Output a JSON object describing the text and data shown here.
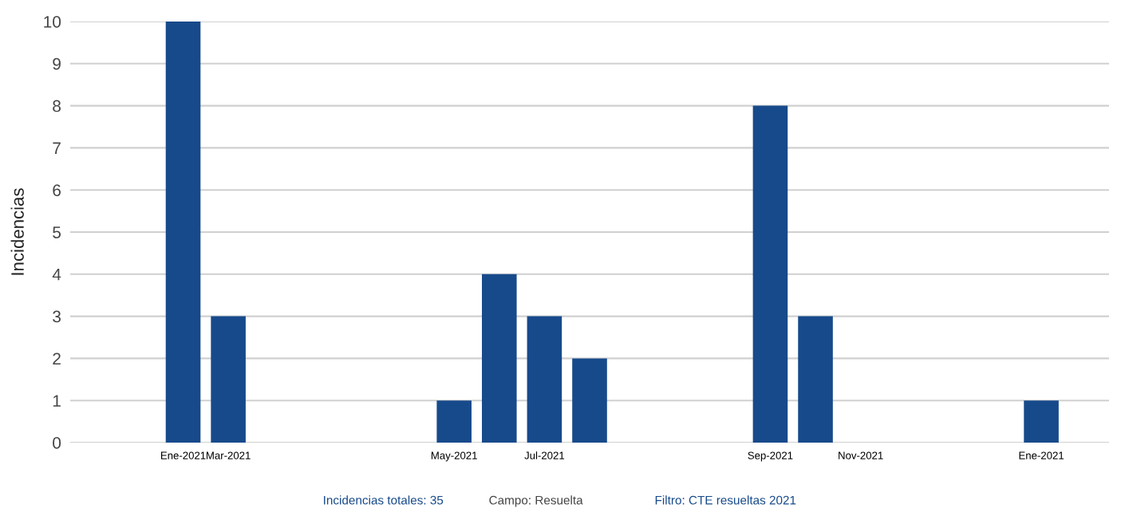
{
  "chart_data": {
    "type": "bar",
    "categories": [
      null,
      null,
      "Ene-2021",
      "Mar-2021",
      null,
      null,
      null,
      null,
      "May-2021",
      null,
      "Jul-2021",
      null,
      null,
      null,
      null,
      "Sep-2021",
      null,
      "Nov-2021",
      null,
      null,
      null,
      "Ene-2021",
      null
    ],
    "values": [
      null,
      null,
      10,
      3,
      null,
      null,
      null,
      null,
      1,
      4,
      3,
      2,
      null,
      null,
      null,
      8,
      3,
      null,
      null,
      null,
      null,
      1,
      null
    ],
    "color": "#174a8b",
    "ylim": [
      0,
      10
    ],
    "yticks": [
      0,
      1,
      2,
      3,
      4,
      5,
      6,
      7,
      8,
      9,
      10
    ],
    "ylabel": "Incidencias",
    "grid": "y",
    "annotations": [
      "Incidencias totales: 35",
      "Campo: Resuelta",
      "Filtro: CTE resueltas 2021"
    ]
  }
}
